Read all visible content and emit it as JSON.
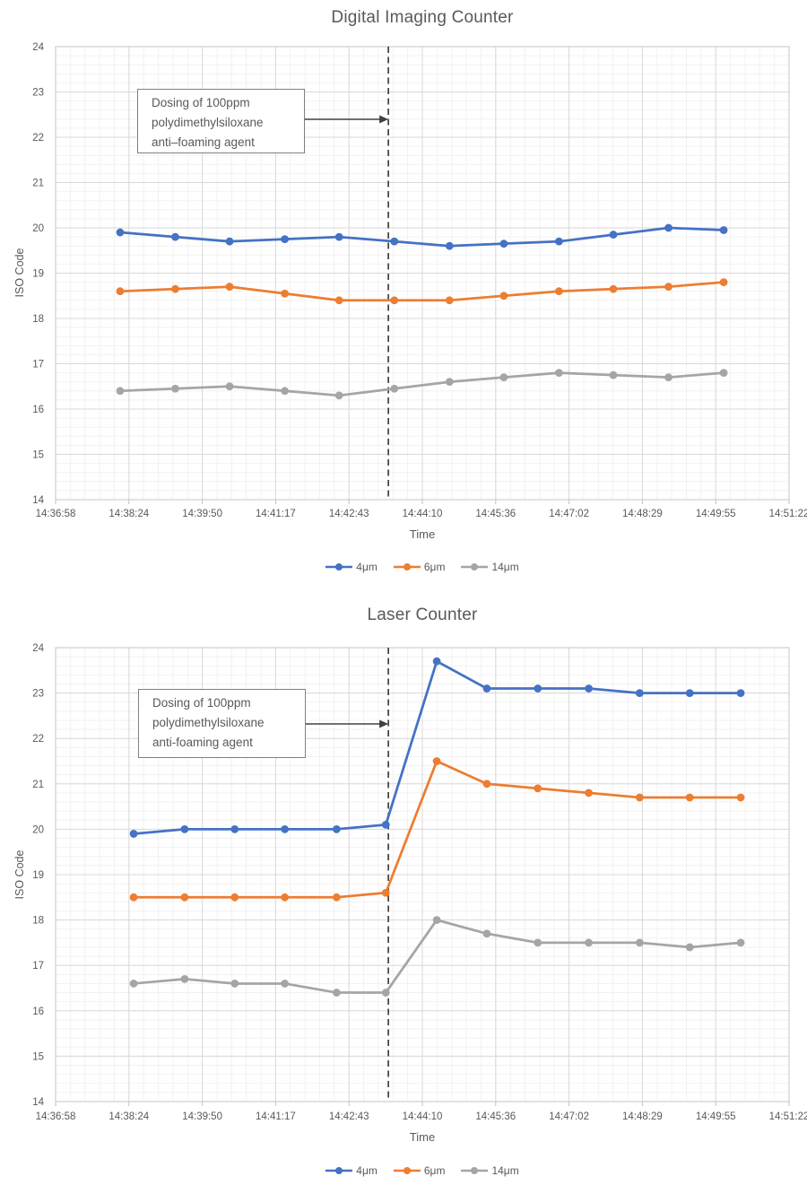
{
  "style": {
    "background": "#FFFFFF",
    "text_color": "#595959",
    "grid_major": "#D9D9D9",
    "grid_minor": "#F2F2F2",
    "axis_border": "#C6C6C6",
    "tick_mark": "#BFBFBF",
    "dashed_line_color": "#404040",
    "annotation_border": "#808080",
    "arrow_color": "#404040"
  },
  "chart_data": [
    {
      "type": "line",
      "title": "Digital Imaging Counter",
      "xlabel": "Time",
      "ylabel": "ISO Code",
      "ylim": [
        14,
        24
      ],
      "y_tick_step": 1,
      "x_tick_labels": [
        "14:36:58",
        "14:38:24",
        "14:39:50",
        "14:41:17",
        "14:42:43",
        "14:44:10",
        "14:45:36",
        "14:47:02",
        "14:48:29",
        "14:49:55",
        "14:51:22"
      ],
      "x_total_seconds": 864,
      "grid": "major and minor gridlines on",
      "legend_position": "bottom",
      "annotation": {
        "lines": [
          "Dosing of 100ppm",
          "polydimethylsiloxane",
          "anti–foaming agent"
        ],
        "arrow_points_to": "dashed dosing line"
      },
      "dosing_line_seconds": 392,
      "series": [
        {
          "name": "4μm",
          "color": "#4472C4",
          "x_seconds": [
            76,
            141,
            205,
            270,
            334,
            399,
            464,
            528,
            593,
            657,
            722,
            787
          ],
          "values": [
            19.9,
            19.8,
            19.7,
            19.75,
            19.8,
            19.7,
            19.6,
            19.65,
            19.7,
            19.85,
            20.0,
            19.95
          ]
        },
        {
          "name": "6μm",
          "color": "#ED7D31",
          "x_seconds": [
            76,
            141,
            205,
            270,
            334,
            399,
            464,
            528,
            593,
            657,
            722,
            787
          ],
          "values": [
            18.6,
            18.65,
            18.7,
            18.55,
            18.4,
            18.4,
            18.4,
            18.5,
            18.6,
            18.65,
            18.7,
            18.8
          ]
        },
        {
          "name": "14μm",
          "color": "#A5A5A5",
          "x_seconds": [
            76,
            141,
            205,
            270,
            334,
            399,
            464,
            528,
            593,
            657,
            722,
            787
          ],
          "values": [
            16.4,
            16.45,
            16.5,
            16.4,
            16.3,
            16.45,
            16.6,
            16.7,
            16.8,
            16.75,
            16.7,
            16.8
          ]
        }
      ]
    },
    {
      "type": "line",
      "title": "Laser Counter",
      "xlabel": "Time",
      "ylabel": "ISO Code",
      "ylim": [
        14,
        24
      ],
      "y_tick_step": 1,
      "x_tick_labels": [
        "14:36:58",
        "14:38:24",
        "14:39:50",
        "14:41:17",
        "14:42:43",
        "14:44:10",
        "14:45:36",
        "14:47:02",
        "14:48:29",
        "14:49:55",
        "14:51:22"
      ],
      "x_total_seconds": 864,
      "grid": "major and minor gridlines on",
      "legend_position": "bottom",
      "annotation": {
        "lines": [
          "Dosing of 100ppm",
          "polydimethylsiloxane",
          "anti-foaming agent"
        ],
        "arrow_points_to": "dashed dosing line"
      },
      "dosing_line_seconds": 392,
      "series": [
        {
          "name": "4μm",
          "color": "#4472C4",
          "x_seconds": [
            92,
            152,
            211,
            270,
            331,
            389,
            449,
            508,
            568,
            628,
            688,
            747,
            807
          ],
          "values": [
            19.9,
            20.0,
            20.0,
            20.0,
            20.0,
            20.1,
            23.7,
            23.1,
            23.1,
            23.1,
            23.0,
            23.0,
            23.0
          ]
        },
        {
          "name": "6μm",
          "color": "#ED7D31",
          "x_seconds": [
            92,
            152,
            211,
            270,
            331,
            389,
            449,
            508,
            568,
            628,
            688,
            747,
            807
          ],
          "values": [
            18.5,
            18.5,
            18.5,
            18.5,
            18.5,
            18.6,
            21.5,
            21.0,
            20.9,
            20.8,
            20.7,
            20.7,
            20.7
          ]
        },
        {
          "name": "14μm",
          "color": "#A5A5A5",
          "x_seconds": [
            92,
            152,
            211,
            270,
            331,
            389,
            449,
            508,
            568,
            628,
            688,
            747,
            807
          ],
          "values": [
            16.6,
            16.7,
            16.6,
            16.6,
            16.4,
            16.4,
            18.0,
            17.7,
            17.5,
            17.5,
            17.5,
            17.4,
            17.5
          ]
        }
      ]
    }
  ]
}
